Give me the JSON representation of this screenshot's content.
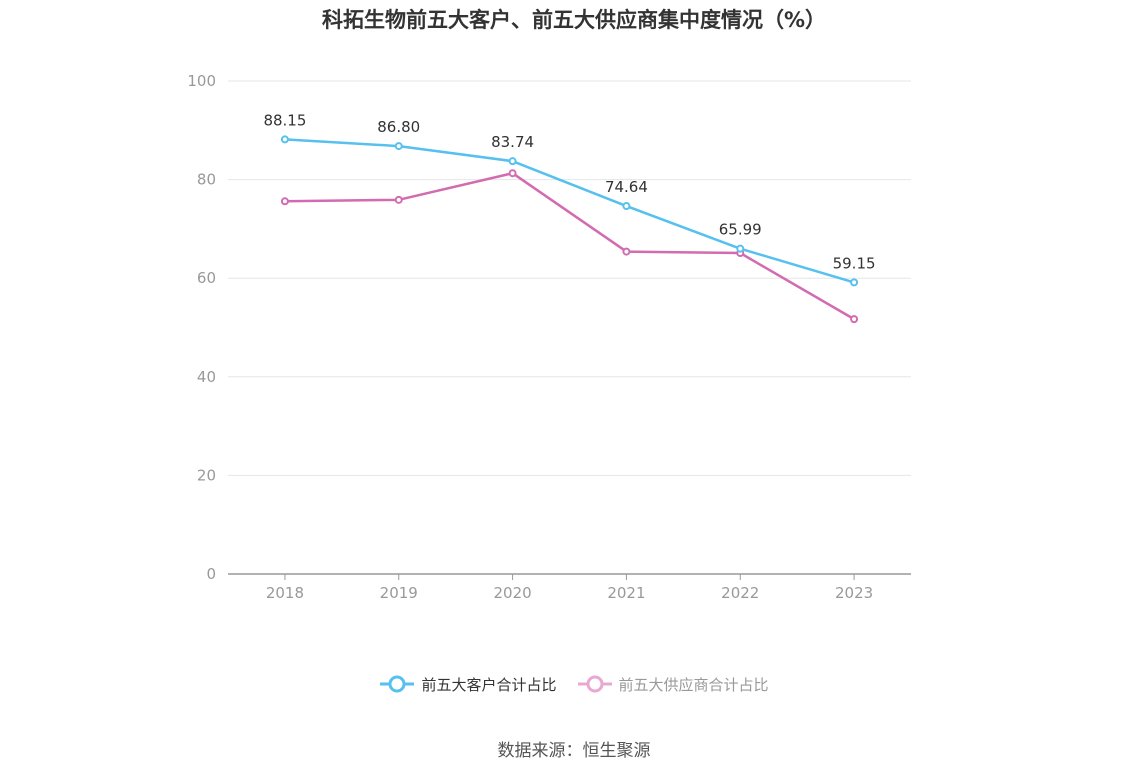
{
  "title": "科拓生物前五大客户、前五大供应商集中度情况（%）",
  "source": "数据来源：恒生聚源",
  "colors": {
    "series1": "#56c0ee",
    "series2": "#d26bb0",
    "series2_legend": "#e8a8d2",
    "axis": "#999999",
    "grid": "#e6e6e6",
    "label": "#333333",
    "tick": "#999999"
  },
  "chart_data": {
    "type": "line",
    "x": [
      "2018",
      "2019",
      "2020",
      "2021",
      "2022",
      "2023"
    ],
    "ylim": [
      0,
      100
    ],
    "yticks": [
      0,
      20,
      40,
      60,
      80,
      100
    ],
    "grid": true,
    "legend_position": "bottom",
    "series": [
      {
        "name": "前五大客户合计占比",
        "values": [
          88.15,
          86.8,
          83.74,
          74.64,
          65.99,
          59.15
        ],
        "labels": [
          "88.15",
          "86.80",
          "83.74",
          "74.64",
          "65.99",
          "59.15"
        ]
      },
      {
        "name": "前五大供应商合计占比",
        "values": [
          75.6,
          75.9,
          81.3,
          65.4,
          65.1,
          51.7
        ]
      }
    ]
  }
}
